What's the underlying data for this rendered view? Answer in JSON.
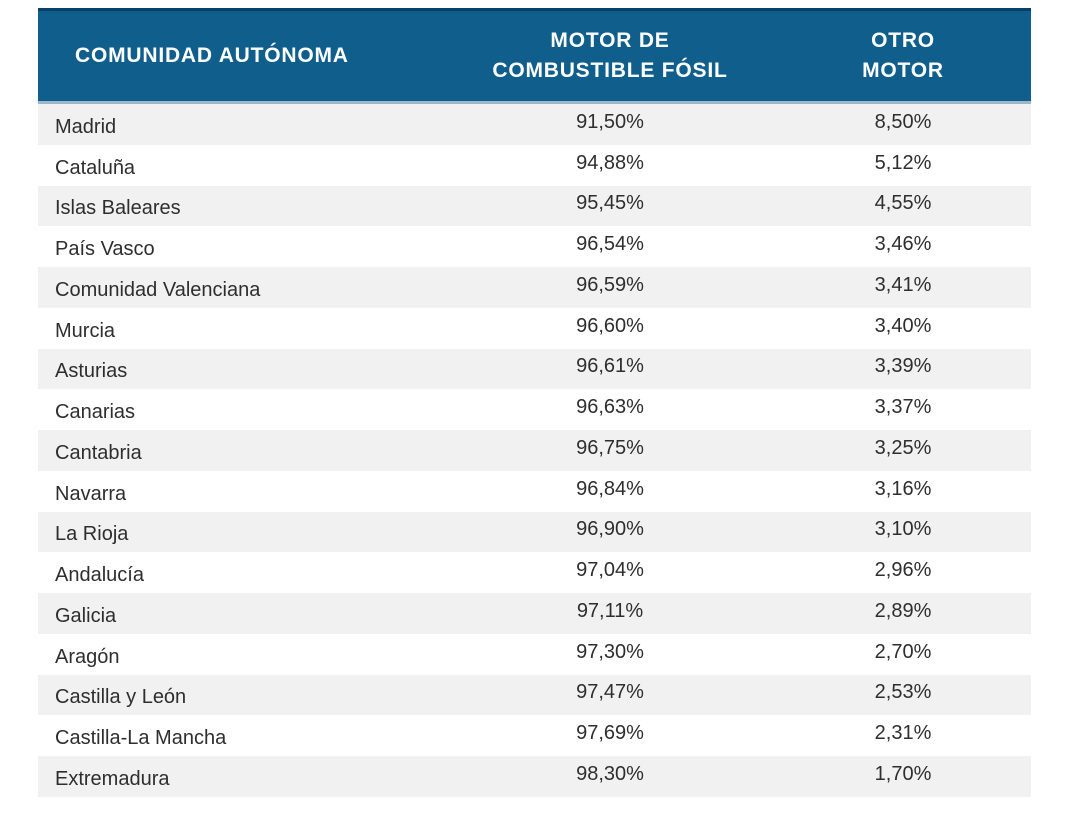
{
  "colors": {
    "header_bg": "#105E8C",
    "header_text": "#FFFFFF",
    "header_top_border": "#0B4066",
    "header_bottom_separator": "#9FB6CA",
    "row_alt_bg": "#F1F1F1",
    "row_bg": "#FFFFFF",
    "body_text": "#2E2E2E"
  },
  "table": {
    "columns": [
      {
        "id": "comunidad",
        "line1": "COMUNIDAD AUTÓNOMA",
        "line2": ""
      },
      {
        "id": "fossil",
        "line1": "MOTOR DE",
        "line2": "COMBUSTIBLE FÓSIL"
      },
      {
        "id": "otro",
        "line1": "OTRO",
        "line2": "MOTOR"
      }
    ],
    "rows": [
      {
        "region": "Madrid",
        "fossil": "91,50%",
        "other": "8,50%"
      },
      {
        "region": "Cataluña",
        "fossil": "94,88%",
        "other": "5,12%"
      },
      {
        "region": "Islas Baleares",
        "fossil": "95,45%",
        "other": "4,55%"
      },
      {
        "region": "País Vasco",
        "fossil": "96,54%",
        "other": "3,46%"
      },
      {
        "region": "Comunidad Valenciana",
        "fossil": "96,59%",
        "other": "3,41%"
      },
      {
        "region": "Murcia",
        "fossil": "96,60%",
        "other": "3,40%"
      },
      {
        "region": "Asturias",
        "fossil": "96,61%",
        "other": "3,39%"
      },
      {
        "region": "Canarias",
        "fossil": "96,63%",
        "other": "3,37%"
      },
      {
        "region": "Cantabria",
        "fossil": "96,75%",
        "other": "3,25%"
      },
      {
        "region": "Navarra",
        "fossil": "96,84%",
        "other": "3,16%"
      },
      {
        "region": "La Rioja",
        "fossil": "96,90%",
        "other": "3,10%"
      },
      {
        "region": "Andalucía",
        "fossil": "97,04%",
        "other": "2,96%"
      },
      {
        "region": "Galicia",
        "fossil": "97,11%",
        "other": "2,89%"
      },
      {
        "region": "Aragón",
        "fossil": "97,30%",
        "other": "2,70%"
      },
      {
        "region": "Castilla y León",
        "fossil": "97,47%",
        "other": "2,53%"
      },
      {
        "region": "Castilla-La Mancha",
        "fossil": "97,69%",
        "other": "2,31%"
      },
      {
        "region": "Extremadura",
        "fossil": "98,30%",
        "other": "1,70%"
      }
    ]
  },
  "chart_data": {
    "type": "table",
    "columns": [
      "COMUNIDAD AUTÓNOMA",
      "MOTOR DE COMBUSTIBLE FÓSIL",
      "OTRO MOTOR"
    ],
    "categories": [
      "Madrid",
      "Cataluña",
      "Islas Baleares",
      "País Vasco",
      "Comunidad Valenciana",
      "Murcia",
      "Asturias",
      "Canarias",
      "Cantabria",
      "Navarra",
      "La Rioja",
      "Andalucía",
      "Galicia",
      "Aragón",
      "Castilla y León",
      "Castilla-La Mancha",
      "Extremadura"
    ],
    "series": [
      {
        "name": "MOTOR DE COMBUSTIBLE FÓSIL",
        "values": [
          91.5,
          94.88,
          95.45,
          96.54,
          96.59,
          96.6,
          96.61,
          96.63,
          96.75,
          96.84,
          96.9,
          97.04,
          97.11,
          97.3,
          97.47,
          97.69,
          98.3
        ]
      },
      {
        "name": "OTRO MOTOR",
        "values": [
          8.5,
          5.12,
          4.55,
          3.46,
          3.41,
          3.4,
          3.39,
          3.37,
          3.25,
          3.16,
          3.1,
          2.96,
          2.89,
          2.7,
          2.53,
          2.31,
          1.7
        ]
      }
    ]
  }
}
